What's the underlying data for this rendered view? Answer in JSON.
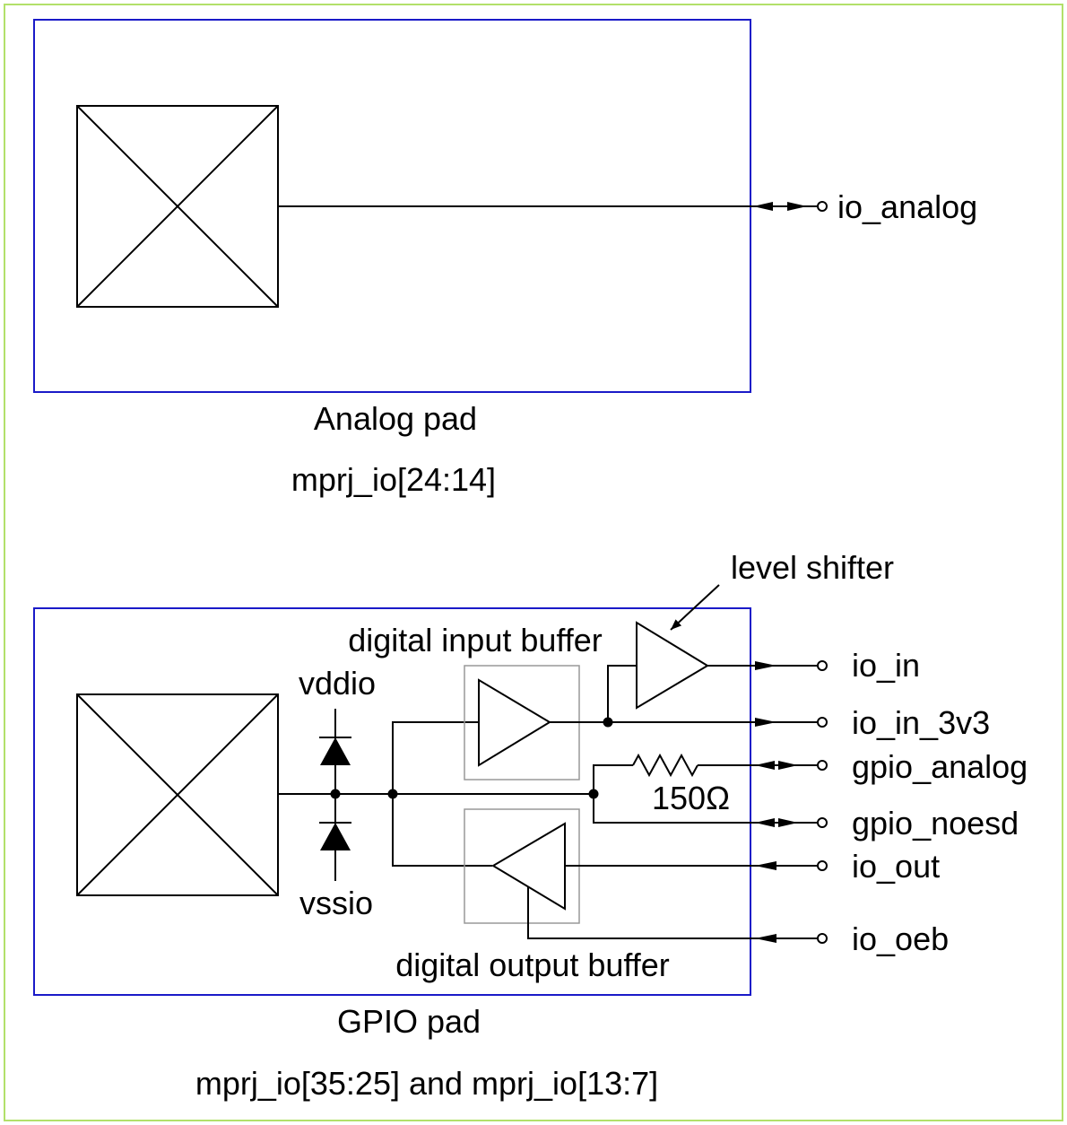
{
  "colors": {
    "frame": "#b2e06a",
    "pad_box": "#1a1ac8",
    "buffer_box": "#999999",
    "line": "#000000"
  },
  "analog_section": {
    "pad_label": "Analog pad",
    "range_label": "mprj_io[24:14]",
    "pins": [
      {
        "label": "io_analog",
        "direction": "bidirectional"
      }
    ]
  },
  "gpio_section": {
    "pad_label": "GPIO pad",
    "range_label": "mprj_io[35:25] and mprj_io[13:7]",
    "vddio_label": "vddio",
    "vssio_label": "vssio",
    "input_buffer_label": "digital input buffer",
    "output_buffer_label": "digital output buffer",
    "level_shifter_label": "level shifter",
    "resistor_label": "150Ω",
    "pins": [
      {
        "label": "io_in",
        "direction": "output"
      },
      {
        "label": "io_in_3v3",
        "direction": "output"
      },
      {
        "label": "gpio_analog",
        "direction": "bidirectional"
      },
      {
        "label": "gpio_noesd",
        "direction": "bidirectional"
      },
      {
        "label": "io_out",
        "direction": "input"
      },
      {
        "label": "io_oeb",
        "direction": "input"
      }
    ]
  }
}
